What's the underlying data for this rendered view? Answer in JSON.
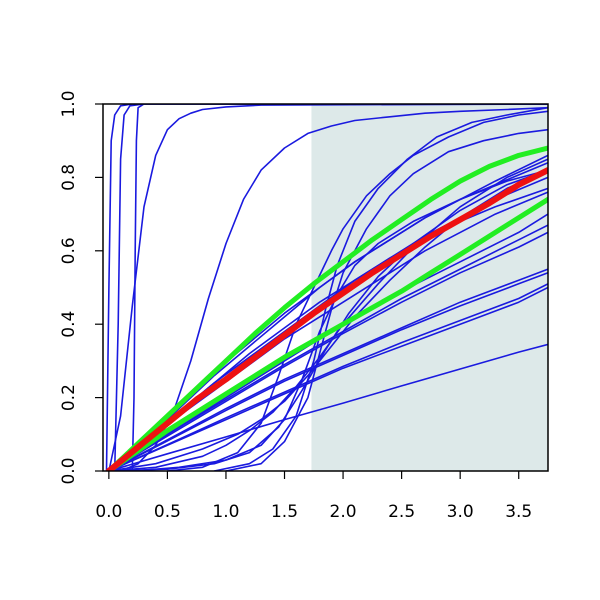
{
  "chart_data": {
    "type": "line",
    "title": "",
    "xlabel": "",
    "ylabel": "",
    "xlim": [
      -0.05,
      3.75
    ],
    "ylim": [
      0.0,
      1.0
    ],
    "x_ticks": [
      "0.0",
      "0.5",
      "1.0",
      "1.5",
      "2.0",
      "2.5",
      "3.0",
      "3.5"
    ],
    "x_tick_values": [
      0.0,
      0.5,
      1.0,
      1.5,
      2.0,
      2.5,
      3.0,
      3.5
    ],
    "y_ticks": [
      "0.0",
      "0.2",
      "0.4",
      "0.6",
      "0.8",
      "1.0"
    ],
    "y_tick_values": [
      0.0,
      0.2,
      0.4,
      0.6,
      0.8,
      1.0
    ],
    "grid": false,
    "shaded_region": {
      "x_from": 1.73,
      "x_to": 3.75,
      "color": "#dde9e9"
    },
    "colors": {
      "thin": "#1a1adf",
      "mean": "#ee1111",
      "band": "#22ee22"
    },
    "series": [
      {
        "role": "mean",
        "x": [
          0,
          0.25,
          0.5,
          0.75,
          1.0,
          1.25,
          1.5,
          1.75,
          2.0,
          2.25,
          2.5,
          2.75,
          3.0,
          3.25,
          3.5,
          3.75
        ],
        "y": [
          0,
          0.065,
          0.13,
          0.195,
          0.25,
          0.31,
          0.37,
          0.43,
          0.485,
          0.54,
          0.59,
          0.64,
          0.685,
          0.73,
          0.78,
          0.82
        ]
      },
      {
        "role": "band",
        "x": [
          0,
          0.25,
          0.5,
          0.75,
          1.0,
          1.25,
          1.5,
          1.75,
          2.0,
          2.25,
          2.5,
          2.75,
          3.0,
          3.25,
          3.5,
          3.75
        ],
        "y": [
          0,
          0.075,
          0.15,
          0.225,
          0.3,
          0.375,
          0.445,
          0.51,
          0.57,
          0.63,
          0.685,
          0.74,
          0.79,
          0.83,
          0.86,
          0.88
        ]
      },
      {
        "role": "band",
        "x": [
          0,
          0.25,
          0.5,
          0.75,
          1.0,
          1.25,
          1.5,
          1.75,
          2.0,
          2.25,
          2.5,
          2.75,
          3.0,
          3.25,
          3.5,
          3.75
        ],
        "y": [
          0,
          0.055,
          0.11,
          0.16,
          0.21,
          0.26,
          0.31,
          0.355,
          0.4,
          0.445,
          0.49,
          0.54,
          0.59,
          0.64,
          0.69,
          0.74
        ]
      },
      {
        "role": "thin",
        "x": [
          -0.02,
          0.0,
          0.02,
          0.05,
          0.1,
          0.2,
          3.75
        ],
        "y": [
          0.0,
          0.5,
          0.9,
          0.97,
          0.995,
          1.0,
          1.0
        ]
      },
      {
        "role": "thin",
        "x": [
          0.05,
          0.08,
          0.1,
          0.13,
          0.18,
          0.3,
          3.75
        ],
        "y": [
          0.0,
          0.4,
          0.85,
          0.97,
          0.995,
          1.0,
          1.0
        ]
      },
      {
        "role": "thin",
        "x": [
          0.2,
          0.215,
          0.225,
          0.235,
          0.25,
          0.3,
          3.75
        ],
        "y": [
          0.0,
          0.2,
          0.6,
          0.9,
          0.99,
          1.0,
          1.0
        ]
      },
      {
        "role": "thin",
        "x": [
          0,
          0.1,
          0.2,
          0.3,
          0.4,
          0.5,
          0.6,
          0.7,
          0.8,
          1.0,
          1.3,
          3.75
        ],
        "y": [
          0,
          0.15,
          0.45,
          0.72,
          0.86,
          0.93,
          0.96,
          0.975,
          0.985,
          0.992,
          0.997,
          1.0
        ]
      },
      {
        "role": "thin",
        "x": [
          0.1,
          0.25,
          0.4,
          0.55,
          0.7,
          0.85,
          1.0,
          1.15,
          1.3,
          1.5,
          1.7,
          1.9,
          2.1,
          2.4,
          2.7,
          3.0,
          3.4,
          3.75
        ],
        "y": [
          0,
          0.02,
          0.07,
          0.16,
          0.3,
          0.47,
          0.62,
          0.74,
          0.82,
          0.88,
          0.92,
          0.94,
          0.955,
          0.965,
          0.975,
          0.98,
          0.985,
          0.99
        ]
      },
      {
        "role": "thin",
        "x": [
          0.5,
          0.8,
          1.1,
          1.3,
          1.45,
          1.6,
          1.75,
          1.9,
          2.0,
          2.2,
          2.4,
          2.6,
          2.9,
          3.2,
          3.5,
          3.75
        ],
        "y": [
          0,
          0.01,
          0.05,
          0.13,
          0.26,
          0.4,
          0.5,
          0.6,
          0.66,
          0.75,
          0.81,
          0.86,
          0.91,
          0.95,
          0.97,
          0.98
        ]
      },
      {
        "role": "thin",
        "x": [
          0.9,
          1.2,
          1.4,
          1.6,
          1.75,
          1.85,
          1.95,
          2.1,
          2.3,
          2.55,
          2.8,
          3.1,
          3.4,
          3.75
        ],
        "y": [
          0,
          0.02,
          0.06,
          0.15,
          0.3,
          0.44,
          0.56,
          0.68,
          0.77,
          0.85,
          0.91,
          0.95,
          0.97,
          0.99
        ]
      },
      {
        "role": "thin",
        "x": [
          1.0,
          1.3,
          1.5,
          1.7,
          1.8,
          1.9,
          2.0,
          2.2,
          2.4,
          2.6,
          2.9,
          3.2,
          3.5,
          3.75
        ],
        "y": [
          0,
          0.02,
          0.08,
          0.2,
          0.32,
          0.44,
          0.54,
          0.66,
          0.75,
          0.81,
          0.87,
          0.9,
          0.92,
          0.93
        ]
      },
      {
        "role": "thin",
        "x": [
          0,
          0.3,
          0.6,
          0.9,
          1.2,
          1.5,
          1.8,
          2.1,
          2.4,
          2.7,
          3.0,
          3.3,
          3.75
        ],
        "y": [
          0,
          0.09,
          0.18,
          0.27,
          0.35,
          0.43,
          0.5,
          0.57,
          0.63,
          0.69,
          0.74,
          0.79,
          0.86
        ]
      },
      {
        "role": "thin",
        "x": [
          0,
          0.3,
          0.6,
          0.9,
          1.2,
          1.5,
          1.8,
          2.1,
          2.4,
          2.7,
          3.0,
          3.3,
          3.75
        ],
        "y": [
          0,
          0.08,
          0.16,
          0.24,
          0.31,
          0.38,
          0.45,
          0.52,
          0.58,
          0.64,
          0.69,
          0.74,
          0.8
        ]
      },
      {
        "role": "thin",
        "x": [
          0,
          0.5,
          1.0,
          1.5,
          2.0,
          2.5,
          3.0,
          3.5,
          3.75
        ],
        "y": [
          0,
          0.1,
          0.2,
          0.3,
          0.4,
          0.49,
          0.57,
          0.65,
          0.7
        ]
      },
      {
        "role": "thin",
        "x": [
          0,
          0.5,
          1.0,
          1.5,
          2.0,
          2.5,
          3.0,
          3.5,
          3.75
        ],
        "y": [
          0,
          0.095,
          0.19,
          0.285,
          0.375,
          0.46,
          0.54,
          0.61,
          0.65
        ]
      },
      {
        "role": "thin",
        "x": [
          0,
          0.5,
          1.0,
          1.5,
          2.0,
          2.5,
          3.0,
          3.5,
          3.75
        ],
        "y": [
          0,
          0.1,
          0.195,
          0.29,
          0.38,
          0.47,
          0.55,
          0.63,
          0.67
        ]
      },
      {
        "role": "thin",
        "x": [
          0,
          0.5,
          1.0,
          1.5,
          2.0,
          2.5,
          3.0,
          3.5,
          3.75
        ],
        "y": [
          0,
          0.085,
          0.17,
          0.25,
          0.32,
          0.39,
          0.46,
          0.52,
          0.55
        ]
      },
      {
        "role": "thin",
        "x": [
          0,
          0.5,
          1.0,
          1.5,
          2.0,
          2.5,
          3.0,
          3.5,
          3.75
        ],
        "y": [
          0,
          0.082,
          0.165,
          0.245,
          0.315,
          0.385,
          0.45,
          0.51,
          0.54
        ]
      },
      {
        "role": "thin",
        "x": [
          0,
          0.5,
          1.0,
          1.5,
          2.0,
          2.5,
          3.0,
          3.5,
          3.75
        ],
        "y": [
          0,
          0.07,
          0.14,
          0.21,
          0.28,
          0.34,
          0.4,
          0.46,
          0.5
        ]
      },
      {
        "role": "thin",
        "x": [
          0,
          0.5,
          1.0,
          1.5,
          2.0,
          2.5,
          3.0,
          3.5,
          3.75
        ],
        "y": [
          0,
          0.072,
          0.145,
          0.215,
          0.285,
          0.35,
          0.41,
          0.47,
          0.51
        ]
      },
      {
        "role": "thin",
        "x": [
          0,
          0.5,
          1.0,
          1.5,
          2.0,
          2.5,
          3.0,
          3.5,
          3.75
        ],
        "y": [
          0,
          0.047,
          0.093,
          0.14,
          0.185,
          0.232,
          0.278,
          0.324,
          0.345
        ]
      },
      {
        "role": "thin",
        "x": [
          0,
          0.3,
          0.6,
          0.9,
          1.2,
          1.5,
          1.8,
          2.1,
          2.4,
          2.7,
          3.0,
          3.3,
          3.75
        ],
        "y": [
          0,
          0.08,
          0.17,
          0.26,
          0.34,
          0.42,
          0.5,
          0.57,
          0.63,
          0.69,
          0.74,
          0.78,
          0.84
        ]
      },
      {
        "role": "thin",
        "x": [
          0,
          0.3,
          0.6,
          0.9,
          1.2,
          1.5,
          1.8,
          2.1,
          2.4,
          2.7,
          3.0,
          3.3,
          3.75
        ],
        "y": [
          0,
          0.08,
          0.16,
          0.24,
          0.32,
          0.39,
          0.46,
          0.52,
          0.58,
          0.63,
          0.68,
          0.72,
          0.77
        ]
      },
      {
        "role": "thin",
        "x": [
          0,
          0.3,
          0.6,
          0.9,
          1.2,
          1.5,
          1.8,
          2.1,
          2.4,
          2.7,
          3.0,
          3.3,
          3.75
        ],
        "y": [
          0,
          0.075,
          0.15,
          0.22,
          0.29,
          0.36,
          0.42,
          0.48,
          0.54,
          0.6,
          0.65,
          0.7,
          0.76
        ]
      },
      {
        "role": "thin",
        "x": [
          0,
          0.4,
          0.8,
          1.0,
          1.2,
          1.4,
          1.6,
          1.8,
          2.0,
          2.3,
          2.6,
          3.0,
          3.4,
          3.75
        ],
        "y": [
          0,
          0.01,
          0.04,
          0.07,
          0.11,
          0.16,
          0.23,
          0.31,
          0.4,
          0.51,
          0.61,
          0.72,
          0.8,
          0.85
        ]
      },
      {
        "role": "thin",
        "x": [
          0,
          0.4,
          0.8,
          1.1,
          1.3,
          1.5,
          1.7,
          1.9,
          2.1,
          2.4,
          2.7,
          3.0,
          3.4,
          3.75
        ],
        "y": [
          0,
          0.02,
          0.06,
          0.1,
          0.14,
          0.19,
          0.26,
          0.34,
          0.42,
          0.52,
          0.61,
          0.69,
          0.77,
          0.82
        ]
      },
      {
        "role": "thin",
        "x": [
          0,
          0.5,
          0.9,
          1.2,
          1.45,
          1.65,
          1.85,
          2.05,
          2.3,
          2.6,
          3.0,
          3.4,
          3.75
        ],
        "y": [
          0,
          0.005,
          0.02,
          0.05,
          0.12,
          0.22,
          0.33,
          0.43,
          0.53,
          0.62,
          0.71,
          0.78,
          0.82
        ]
      },
      {
        "role": "thin",
        "x": [
          0.2,
          0.6,
          1.0,
          1.3,
          1.5,
          1.65,
          1.8,
          1.95,
          2.1,
          2.3,
          2.6,
          3.0,
          3.4,
          3.75
        ],
        "y": [
          0,
          0.01,
          0.03,
          0.07,
          0.14,
          0.25,
          0.38,
          0.48,
          0.56,
          0.62,
          0.68,
          0.74,
          0.79,
          0.82
        ]
      }
    ]
  }
}
